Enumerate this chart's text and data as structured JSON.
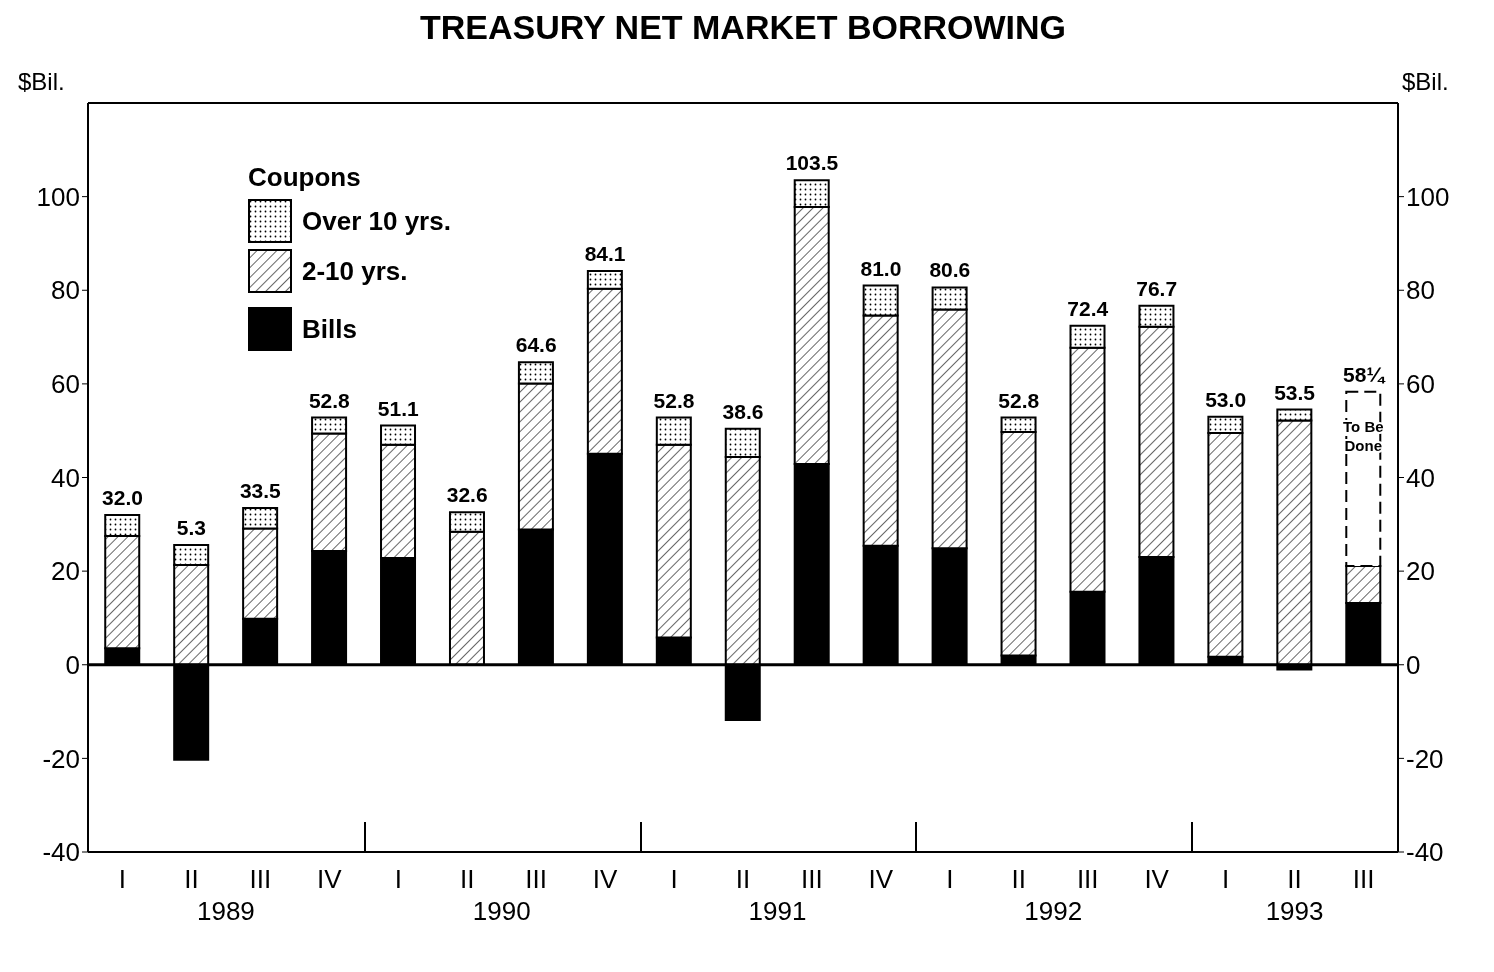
{
  "chart_data": {
    "type": "bar",
    "title": "TREASURY NET MARKET BORROWING",
    "ylabel": "$Bil.",
    "y2label": "$Bil.",
    "stacked": true,
    "categories": [
      "I",
      "II",
      "III",
      "IV",
      "I",
      "II",
      "III",
      "IV",
      "I",
      "II",
      "III",
      "IV",
      "I",
      "II",
      "III",
      "IV",
      "I",
      "II",
      "III"
    ],
    "series": [
      {
        "name": "Bills",
        "color": "#000000",
        "values": [
          3.5,
          -20.3,
          9.8,
          24.3,
          22.8,
          0,
          28.9,
          45.1,
          5.8,
          -11.8,
          42.9,
          25.4,
          24.9,
          2,
          15.6,
          23,
          1.7,
          -1,
          13.2
        ]
      },
      {
        "name": "2-10 yrs.",
        "color": "#000000",
        "values": [
          24,
          21.3,
          19.3,
          25.1,
          24.2,
          28.4,
          31.2,
          35.2,
          41.2,
          44.4,
          54.9,
          49.2,
          51,
          47.7,
          52.1,
          49.2,
          47.8,
          52.2,
          7.9
        ]
      },
      {
        "name": "Over 10 yrs.",
        "color": "#000000",
        "values": [
          4.5,
          4.3,
          4.4,
          3.4,
          4.1,
          4.2,
          4.5,
          3.8,
          5.8,
          6,
          5.7,
          6.4,
          4.7,
          3.1,
          4.7,
          4.5,
          3.5,
          2.3,
          null
        ]
      },
      {
        "name": "To Be Done",
        "color": "#000000",
        "line_style": "dashed",
        "values": [
          null,
          null,
          null,
          null,
          null,
          null,
          null,
          null,
          null,
          null,
          null,
          null,
          null,
          null,
          null,
          null,
          null,
          null,
          37.2
        ]
      }
    ],
    "totals": [
      "32.0",
      "5.3",
      "33.5",
      "52.8",
      "51.1",
      "32.6",
      "64.6",
      "84.1",
      "52.8",
      "38.6",
      "103.5",
      "81.0",
      "80.6",
      "52.8",
      "72.4",
      "76.7",
      "53.0",
      "53.5",
      "58¼"
    ],
    "legend_title": "Coupons",
    "legend": "top left",
    "ylim": [
      -40,
      120
    ],
    "yticks": [
      -40,
      -20,
      0,
      20,
      40,
      60,
      80,
      100
    ],
    "y2lim": [
      -40,
      120
    ],
    "y2ticks": [
      -40,
      -20,
      0,
      20,
      40,
      60,
      80,
      100
    ],
    "ref_lines": [
      {
        "axis": "y",
        "value": 0,
        "color": "#000000"
      }
    ],
    "annotations": [
      "1989",
      "1990",
      "1991",
      "1992",
      "1993"
    ]
  }
}
